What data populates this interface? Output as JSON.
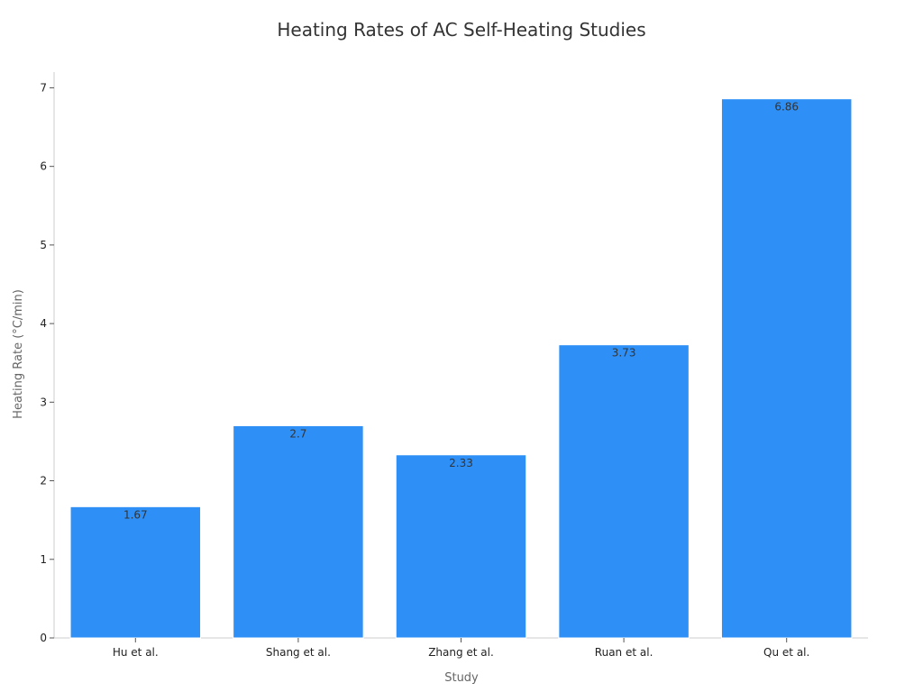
{
  "chart_data": {
    "type": "bar",
    "title": "Heating Rates of AC Self-Heating Studies",
    "xlabel": "Study",
    "ylabel": "Heating Rate (°C/min)",
    "categories": [
      "Hu et al.",
      "Shang et al.",
      "Zhang et al.",
      "Ruan et al.",
      "Qu et al."
    ],
    "values": [
      1.67,
      2.7,
      2.33,
      3.73,
      6.86
    ],
    "data_labels": [
      "1.67",
      "2.7",
      "2.33",
      "3.73",
      "6.86"
    ],
    "ylim": [
      0,
      7.2
    ],
    "yticks": [
      "0",
      "1",
      "2",
      "3",
      "4",
      "5",
      "6",
      "7"
    ],
    "grid": false,
    "legend": "none",
    "bar_color": "#2e90f7"
  }
}
